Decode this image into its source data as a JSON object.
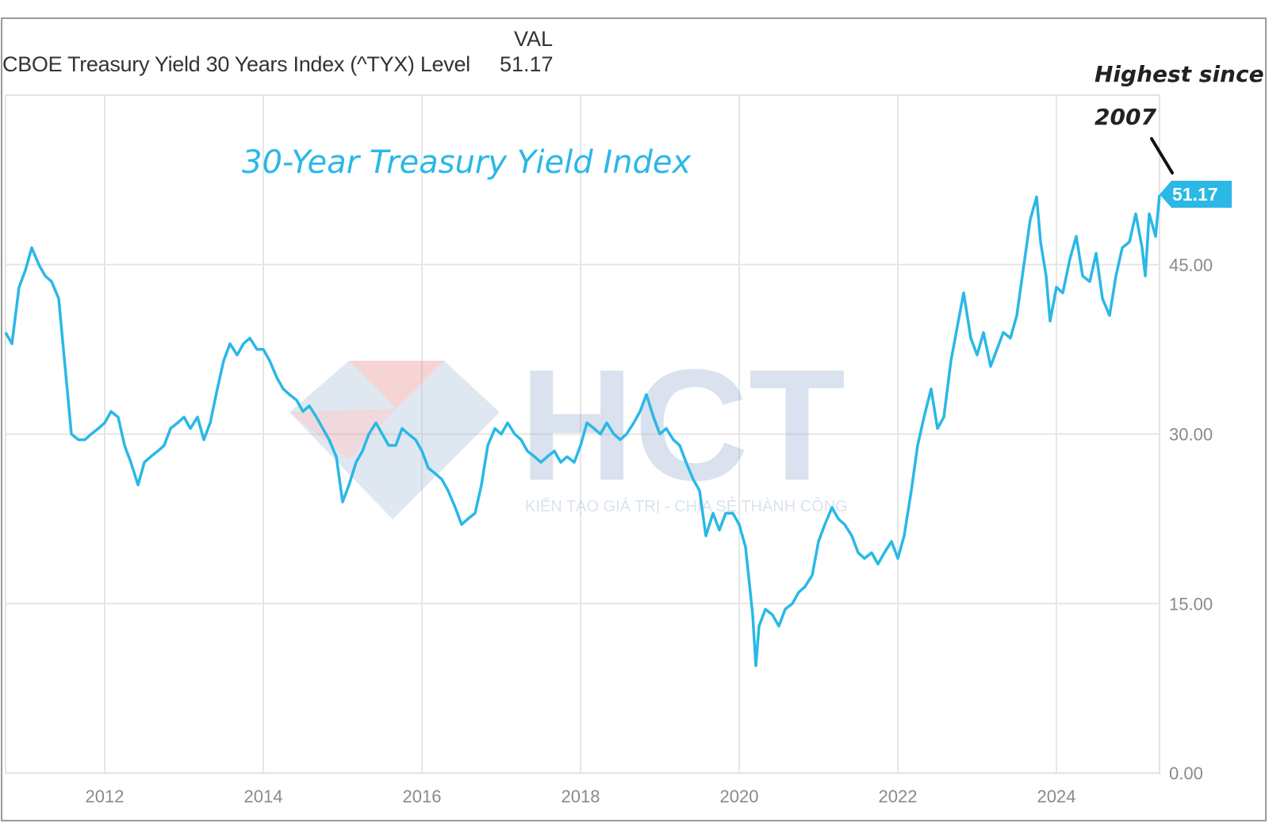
{
  "legend": {
    "column_header": "VAL",
    "series_name": "CBOE Treasury Yield 30 Years Index (^TYX) Level",
    "value": "51.17"
  },
  "colors": {
    "series": "#2ab8e6",
    "grid": "#e6e6e6",
    "tick_text": "#8a8a8a",
    "annotation": "#222222"
  },
  "watermark": {
    "logo_text": "HCT",
    "tagline": "KIẾN TẠO GIÁ TRỊ - CHIA SẺ THÀNH CÔNG"
  },
  "chart_data": {
    "type": "line",
    "title": "30-Year Treasury Yield Index",
    "xlabel": "",
    "ylabel": "",
    "ylim": [
      0,
      60
    ],
    "xlim": [
      2010.75,
      2025.3
    ],
    "y_ticks": [
      "0.00",
      "15.00",
      "30.00",
      "45.00"
    ],
    "x_ticks": [
      "2012",
      "2014",
      "2016",
      "2018",
      "2020",
      "2022",
      "2024"
    ],
    "grid": true,
    "last_value_label": "51.17",
    "annotation": {
      "text_line1": "Highest since",
      "text_line2": "2007"
    },
    "series": [
      {
        "name": "CBOE Treasury Yield 30 Years Index (^TYX) Level",
        "x": [
          2010.75,
          2010.83,
          2010.92,
          2011.0,
          2011.08,
          2011.17,
          2011.25,
          2011.33,
          2011.42,
          2011.5,
          2011.58,
          2011.67,
          2011.75,
          2011.83,
          2011.92,
          2012.0,
          2012.08,
          2012.17,
          2012.25,
          2012.33,
          2012.42,
          2012.5,
          2012.58,
          2012.67,
          2012.75,
          2012.83,
          2012.92,
          2013.0,
          2013.08,
          2013.17,
          2013.25,
          2013.33,
          2013.42,
          2013.5,
          2013.58,
          2013.67,
          2013.75,
          2013.83,
          2013.92,
          2014.0,
          2014.08,
          2014.17,
          2014.25,
          2014.33,
          2014.42,
          2014.5,
          2014.58,
          2014.67,
          2014.75,
          2014.83,
          2014.92,
          2015.0,
          2015.08,
          2015.17,
          2015.25,
          2015.33,
          2015.42,
          2015.5,
          2015.58,
          2015.67,
          2015.75,
          2015.83,
          2015.92,
          2016.0,
          2016.08,
          2016.17,
          2016.25,
          2016.33,
          2016.42,
          2016.5,
          2016.58,
          2016.67,
          2016.75,
          2016.83,
          2016.92,
          2017.0,
          2017.08,
          2017.17,
          2017.25,
          2017.33,
          2017.42,
          2017.5,
          2017.58,
          2017.67,
          2017.75,
          2017.83,
          2017.92,
          2018.0,
          2018.08,
          2018.17,
          2018.25,
          2018.33,
          2018.42,
          2018.5,
          2018.58,
          2018.67,
          2018.75,
          2018.83,
          2018.92,
          2019.0,
          2019.08,
          2019.17,
          2019.25,
          2019.33,
          2019.42,
          2019.5,
          2019.58,
          2019.67,
          2019.75,
          2019.83,
          2019.92,
          2020.0,
          2020.08,
          2020.17,
          2020.21,
          2020.25,
          2020.33,
          2020.42,
          2020.5,
          2020.58,
          2020.67,
          2020.75,
          2020.83,
          2020.92,
          2021.0,
          2021.08,
          2021.17,
          2021.25,
          2021.33,
          2021.42,
          2021.5,
          2021.58,
          2021.67,
          2021.75,
          2021.83,
          2021.92,
          2022.0,
          2022.08,
          2022.17,
          2022.25,
          2022.33,
          2022.42,
          2022.5,
          2022.58,
          2022.67,
          2022.75,
          2022.83,
          2022.92,
          2023.0,
          2023.08,
          2023.17,
          2023.25,
          2023.33,
          2023.42,
          2023.5,
          2023.58,
          2023.67,
          2023.75,
          2023.8,
          2023.87,
          2023.92,
          2024.0,
          2024.08,
          2024.17,
          2024.25,
          2024.33,
          2024.42,
          2024.5,
          2024.58,
          2024.67,
          2024.75,
          2024.83,
          2024.92,
          2025.0,
          2025.08,
          2025.12,
          2025.17,
          2025.25,
          2025.3
        ],
        "values": [
          39.0,
          38.0,
          43.0,
          44.5,
          46.5,
          45.0,
          44.0,
          43.5,
          42.0,
          36.0,
          30.0,
          29.5,
          29.5,
          30.0,
          30.5,
          31.0,
          32.0,
          31.5,
          29.0,
          27.5,
          25.5,
          27.5,
          28.0,
          28.5,
          29.0,
          30.5,
          31.0,
          31.5,
          30.5,
          31.5,
          29.5,
          31.0,
          34.0,
          36.5,
          38.0,
          37.0,
          38.0,
          38.5,
          37.5,
          37.5,
          36.5,
          35.0,
          34.0,
          33.5,
          33.0,
          32.0,
          32.5,
          31.5,
          30.5,
          29.5,
          28.0,
          24.0,
          25.5,
          27.5,
          28.5,
          30.0,
          31.0,
          30.0,
          29.0,
          29.0,
          30.5,
          30.0,
          29.5,
          28.5,
          27.0,
          26.5,
          26.0,
          25.0,
          23.5,
          22.0,
          22.5,
          23.0,
          25.5,
          29.0,
          30.5,
          30.0,
          31.0,
          30.0,
          29.5,
          28.5,
          28.0,
          27.5,
          28.0,
          28.5,
          27.5,
          28.0,
          27.5,
          29.0,
          31.0,
          30.5,
          30.0,
          31.0,
          30.0,
          29.5,
          30.0,
          31.0,
          32.0,
          33.5,
          31.5,
          30.0,
          30.5,
          29.5,
          29.0,
          27.5,
          26.0,
          25.0,
          21.0,
          23.0,
          21.5,
          23.0,
          23.0,
          22.0,
          20.0,
          14.0,
          9.5,
          13.0,
          14.5,
          14.0,
          13.0,
          14.5,
          15.0,
          16.0,
          16.5,
          17.5,
          20.5,
          22.0,
          23.5,
          22.5,
          22.0,
          21.0,
          19.5,
          19.0,
          19.5,
          18.5,
          19.5,
          20.5,
          19.0,
          21.0,
          25.0,
          29.0,
          31.5,
          34.0,
          30.5,
          31.5,
          36.5,
          39.5,
          42.5,
          38.5,
          37.0,
          39.0,
          36.0,
          37.5,
          39.0,
          38.5,
          40.5,
          44.5,
          49.0,
          51.0,
          47.0,
          44.0,
          40.0,
          43.0,
          42.5,
          45.5,
          47.5,
          44.0,
          43.5,
          46.0,
          42.0,
          40.5,
          44.0,
          46.5,
          47.0,
          49.5,
          46.5,
          44.0,
          49.5,
          47.5,
          51.17
        ]
      }
    ]
  }
}
